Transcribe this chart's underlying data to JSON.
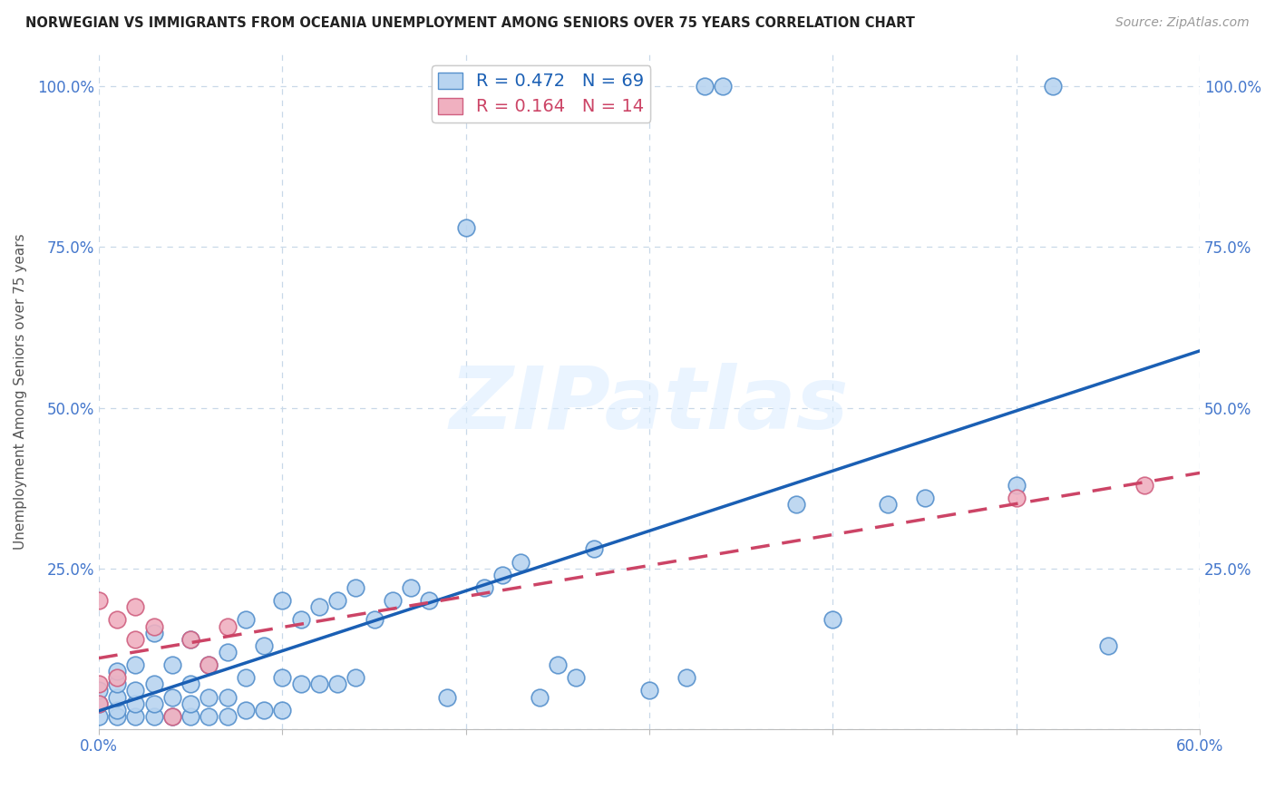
{
  "title": "NORWEGIAN VS IMMIGRANTS FROM OCEANIA UNEMPLOYMENT AMONG SENIORS OVER 75 YEARS CORRELATION CHART",
  "source": "Source: ZipAtlas.com",
  "ylabel": "Unemployment Among Seniors over 75 years",
  "xlim": [
    0,
    0.6
  ],
  "ylim": [
    0,
    1.05
  ],
  "xtick_vals": [
    0.0,
    0.1,
    0.2,
    0.3,
    0.4,
    0.5,
    0.6
  ],
  "xticklabels": [
    "0.0%",
    "",
    "",
    "",
    "",
    "",
    "60.0%"
  ],
  "ytick_vals": [
    0.0,
    0.25,
    0.5,
    0.75,
    1.0
  ],
  "yticklabels": [
    "",
    "25.0%",
    "50.0%",
    "75.0%",
    "100.0%"
  ],
  "norwegian_color": "#b8d4f0",
  "norwegian_edge_color": "#5590cc",
  "immigrant_color": "#f0b0c0",
  "immigrant_edge_color": "#d06080",
  "norwegian_line_color": "#1a5fb4",
  "immigrant_line_color": "#cc4466",
  "R_norwegian": 0.472,
  "N_norwegian": 69,
  "R_immigrant": 0.164,
  "N_immigrant": 14,
  "watermark": "ZIPatlas",
  "nor_x": [
    0.0,
    0.0,
    0.0,
    0.01,
    0.01,
    0.01,
    0.01,
    0.01,
    0.02,
    0.02,
    0.02,
    0.02,
    0.03,
    0.03,
    0.03,
    0.03,
    0.04,
    0.04,
    0.04,
    0.05,
    0.05,
    0.05,
    0.05,
    0.06,
    0.06,
    0.06,
    0.07,
    0.07,
    0.07,
    0.08,
    0.08,
    0.08,
    0.09,
    0.09,
    0.1,
    0.1,
    0.1,
    0.11,
    0.11,
    0.12,
    0.12,
    0.13,
    0.13,
    0.14,
    0.14,
    0.15,
    0.16,
    0.17,
    0.18,
    0.19,
    0.2,
    0.21,
    0.22,
    0.23,
    0.24,
    0.25,
    0.26,
    0.27,
    0.3,
    0.32,
    0.33,
    0.34,
    0.38,
    0.4,
    0.43,
    0.45,
    0.5,
    0.52,
    0.55
  ],
  "nor_y": [
    0.02,
    0.04,
    0.06,
    0.02,
    0.03,
    0.05,
    0.07,
    0.09,
    0.02,
    0.04,
    0.06,
    0.1,
    0.02,
    0.04,
    0.07,
    0.15,
    0.02,
    0.05,
    0.1,
    0.02,
    0.04,
    0.07,
    0.14,
    0.02,
    0.05,
    0.1,
    0.02,
    0.05,
    0.12,
    0.03,
    0.08,
    0.17,
    0.03,
    0.13,
    0.03,
    0.08,
    0.2,
    0.07,
    0.17,
    0.07,
    0.19,
    0.07,
    0.2,
    0.08,
    0.22,
    0.17,
    0.2,
    0.22,
    0.2,
    0.05,
    0.78,
    0.22,
    0.24,
    0.26,
    0.05,
    0.1,
    0.08,
    0.28,
    0.06,
    0.08,
    1.0,
    1.0,
    0.35,
    0.17,
    0.35,
    0.36,
    0.38,
    1.0,
    0.13
  ],
  "imm_x": [
    0.0,
    0.0,
    0.0,
    0.01,
    0.01,
    0.02,
    0.02,
    0.03,
    0.04,
    0.05,
    0.06,
    0.07,
    0.5,
    0.57
  ],
  "imm_y": [
    0.04,
    0.07,
    0.2,
    0.08,
    0.17,
    0.14,
    0.19,
    0.16,
    0.02,
    0.14,
    0.1,
    0.16,
    0.36,
    0.38
  ]
}
